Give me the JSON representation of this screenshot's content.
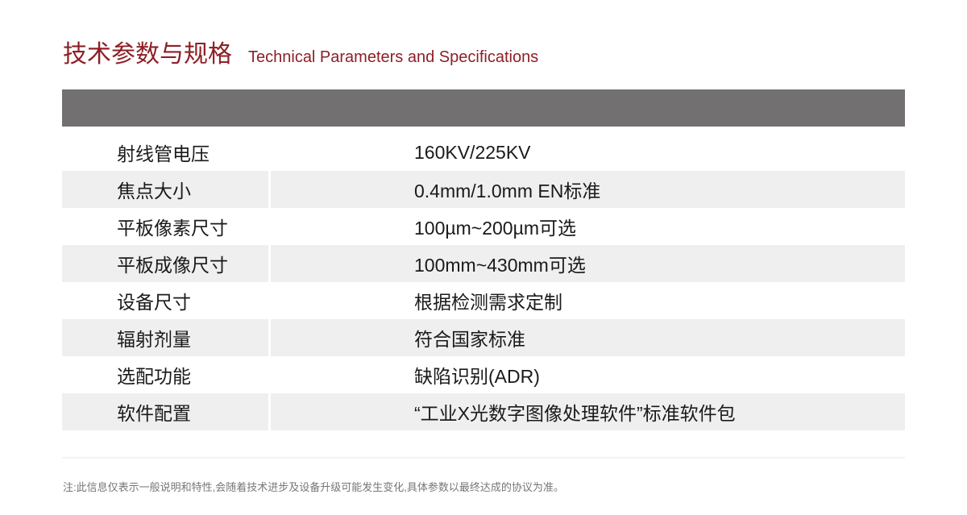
{
  "title": {
    "zh": "技术参数与规格",
    "en": "Technical Parameters and Specifications"
  },
  "colors": {
    "title": "#8e1f26",
    "header_bar": "#727071",
    "alt_row": "#efefef"
  },
  "specs": [
    {
      "label": "射线管电压",
      "value": "160KV/225KV"
    },
    {
      "label": "焦点大小",
      "value": "0.4mm/1.0mm EN标准"
    },
    {
      "label": "平板像素尺寸",
      "value": "100µm~200µm可选"
    },
    {
      "label": "平板成像尺寸",
      "value": "100mm~430mm可选"
    },
    {
      "label": "设备尺寸",
      "value": "根据检测需求定制"
    },
    {
      "label": "辐射剂量",
      "value": "符合国家标准"
    },
    {
      "label": "选配功能",
      "value": "缺陷识别(ADR)"
    },
    {
      "label": "软件配置",
      "value": "“工业X光数字图像处理软件”标准软件包"
    }
  ],
  "note": "注:此信息仅表示一般说明和特性,会随着技术进步及设备升级可能发生变化,具体参数以最终达成的协议为准。"
}
